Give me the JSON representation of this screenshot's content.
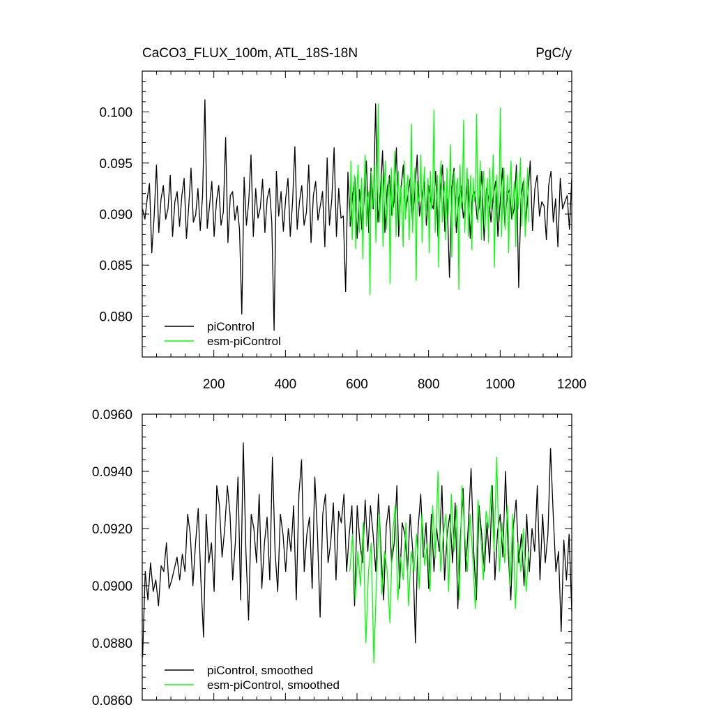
{
  "chart_data": [
    {
      "type": "line",
      "title": "CaCO3_FLUX_100m, ATL_18S-18N",
      "units": "PgC/y",
      "xlim": [
        0,
        1200
      ],
      "ylim": [
        0.076,
        0.104
      ],
      "x_ticks": [
        200,
        400,
        600,
        800,
        1000,
        1200
      ],
      "x_tick_labels": [
        "200",
        "400",
        "600",
        "800",
        "1000",
        "1200"
      ],
      "y_ticks": [
        0.08,
        0.085,
        0.09,
        0.095,
        0.1
      ],
      "y_tick_labels": [
        "0.080",
        "0.085",
        "0.090",
        "0.095",
        "0.100"
      ],
      "legend_position": "bottom-left",
      "series": [
        {
          "name": "piControl",
          "color": "#000000",
          "x_start": 1,
          "x_end": 1200,
          "values": [
            0.0905,
            0.0895,
            0.0915,
            0.093,
            0.0862,
            0.0898,
            0.0948,
            0.0882,
            0.0915,
            0.0928,
            0.0895,
            0.0905,
            0.0938,
            0.0878,
            0.0912,
            0.0922,
            0.0888,
            0.0918,
            0.0935,
            0.0876,
            0.0908,
            0.0945,
            0.0892,
            0.0899,
            0.0925,
            0.0884,
            0.0918,
            0.1012,
            0.0886,
            0.0908,
            0.0932,
            0.0878,
            0.0912,
            0.0928,
            0.0889,
            0.0902,
            0.0975,
            0.0872,
            0.0918,
            0.0922,
            0.0894,
            0.0908,
            0.0885,
            0.0802,
            0.0936,
            0.0889,
            0.0912,
            0.0958,
            0.0878,
            0.0925,
            0.0896,
            0.0906,
            0.0934,
            0.0882,
            0.0915,
            0.0925,
            0.0892,
            0.0786,
            0.0942,
            0.0898,
            0.0922,
            0.0883,
            0.0915,
            0.0935,
            0.0878,
            0.0912,
            0.0966,
            0.0885,
            0.0912,
            0.0928,
            0.0889,
            0.0902,
            0.0948,
            0.0872,
            0.0918,
            0.0932,
            0.0894,
            0.0908,
            0.0922,
            0.0868,
            0.0955,
            0.0889,
            0.0915,
            0.0965,
            0.0878,
            0.0925,
            0.0896,
            0.0898,
            0.0824,
            0.0941,
            0.0888,
            0.0918,
            0.0936,
            0.0876,
            0.0924,
            0.0885,
            0.0912,
            0.0952,
            0.0882,
            0.0945,
            0.0905,
            0.1008,
            0.0892,
            0.0918,
            0.0962,
            0.0882,
            0.0925,
            0.0938,
            0.0899,
            0.0912,
            0.0965,
            0.0878,
            0.0925,
            0.0948,
            0.0902,
            0.0918,
            0.0935,
            0.0892,
            0.0922,
            0.0958,
            0.0898,
            0.0915,
            0.0932,
            0.0889,
            0.0928,
            0.0912,
            0.0905,
            0.0942,
            0.0878,
            0.0922,
            0.0948,
            0.0883,
            0.0915,
            0.0838,
            0.0925,
            0.0945,
            0.0882,
            0.0915,
            0.0928,
            0.0896,
            0.0912,
            0.0934,
            0.0876,
            0.0918,
            0.0922,
            0.0895,
            0.0908,
            0.0942,
            0.0874,
            0.0925,
            0.0915,
            0.0892,
            0.0918,
            0.0932,
            0.0878,
            0.0912,
            0.0945,
            0.0889,
            0.0918,
            0.0924,
            0.0895,
            0.0905,
            0.0948,
            0.0828,
            0.0915,
            0.0932,
            0.0889,
            0.0918,
            0.0952,
            0.0884,
            0.0925,
            0.0938,
            0.0898,
            0.0912,
            0.0908,
            0.0875,
            0.0928,
            0.0942,
            0.0892,
            0.0915,
            0.0868,
            0.0935,
            0.0905,
            0.0912,
            0.0918,
            0.0885,
            0.0935
          ]
        },
        {
          "name": "esm-piControl",
          "color": "#00ff00",
          "x_start": 580,
          "x_end": 1080,
          "values": [
            0.0892,
            0.0952,
            0.0875,
            0.0915,
            0.0938,
            0.0866,
            0.0924,
            0.0948,
            0.0882,
            0.0912,
            0.0935,
            0.0856,
            0.0928,
            0.0958,
            0.0888,
            0.0915,
            0.0922,
            0.0821,
            0.0942,
            0.0905,
            0.0918,
            0.0948,
            0.0872,
            0.0925,
            0.1008,
            0.0892,
            0.0915,
            0.0938,
            0.0868,
            0.0928,
            0.0952,
            0.0885,
            0.0918,
            0.0935,
            0.0832,
            0.0945,
            0.0898,
            0.0925,
            0.0962,
            0.0878,
            0.0918,
            0.0942,
            0.0889,
            0.0928,
            0.0905,
            0.0868,
            0.0952,
            0.0895,
            0.0925,
            0.0938,
            0.0875,
            0.0915,
            0.0988,
            0.0882,
            0.0925,
            0.0945,
            0.0835,
            0.0932,
            0.0912,
            0.0918,
            0.0958,
            0.0872,
            0.0925,
            0.0946,
            0.0895,
            0.0918,
            0.0935,
            0.0862,
            0.0942,
            0.0905,
            0.0925,
            0.1002,
            0.0882,
            0.0912,
            0.0938,
            0.0848,
            0.0935,
            0.0952,
            0.0892,
            0.0918,
            0.0932,
            0.0875,
            0.0945,
            0.0898,
            0.0925,
            0.0968,
            0.0858,
            0.0918,
            0.0942,
            0.0888,
            0.0928,
            0.0935,
            0.0826,
            0.0948,
            0.0905,
            0.0918,
            0.0992,
            0.0882,
            0.0925,
            0.0945,
            0.0878,
            0.0915,
            0.0938,
            0.0865,
            0.0935,
            0.0912,
            0.0922,
            0.0998,
            0.0892,
            0.0918,
            0.0952,
            0.0875,
            0.0928,
            0.0942,
            0.0885,
            0.0912,
            0.0935,
            0.0872,
            0.0945,
            0.0905,
            0.0922,
            0.0958,
            0.0848,
            0.0918,
            0.0938,
            0.0892,
            0.0925,
            0.1004,
            0.0878,
            0.0918,
            0.0945,
            0.0885,
            0.0912,
            0.0938,
            0.0862,
            0.0928,
            0.0952,
            0.0895,
            0.0918,
            0.0932,
            0.0868,
            0.0942,
            0.0905,
            0.0925,
            0.0955,
            0.0888,
            0.0918,
            0.0935,
            0.0878,
            0.0912,
            0.0945,
            0.0892
          ]
        }
      ],
      "legend": [
        "piControl",
        "esm-piControl"
      ]
    },
    {
      "type": "line",
      "xlim": [
        0,
        1200
      ],
      "ylim": [
        0.086,
        0.096
      ],
      "y_ticks": [
        0.086,
        0.088,
        0.09,
        0.092,
        0.094,
        0.096
      ],
      "y_tick_labels": [
        "0.0860",
        "0.0880",
        "0.0900",
        "0.0920",
        "0.0940",
        "0.0960"
      ],
      "legend_position": "bottom-left",
      "series": [
        {
          "name": "piControl, smoothed",
          "color": "#000000",
          "x_start": 1,
          "x_end": 1200,
          "values": [
            0.0875,
            0.0905,
            0.0895,
            0.0908,
            0.0898,
            0.0902,
            0.0893,
            0.0907,
            0.0905,
            0.0915,
            0.0899,
            0.0902,
            0.0906,
            0.091,
            0.0902,
            0.0911,
            0.0905,
            0.0925,
            0.0918,
            0.09,
            0.0915,
            0.0927,
            0.0902,
            0.0882,
            0.0925,
            0.0908,
            0.0915,
            0.0898,
            0.0935,
            0.0928,
            0.091,
            0.092,
            0.0935,
            0.0925,
            0.0902,
            0.0915,
            0.0938,
            0.0895,
            0.095,
            0.0912,
            0.0888,
            0.0925,
            0.092,
            0.0908,
            0.0932,
            0.0899,
            0.0915,
            0.0924,
            0.0902,
            0.0945,
            0.0912,
            0.0898,
            0.0925,
            0.0918,
            0.0905,
            0.092,
            0.0912,
            0.0928,
            0.0895,
            0.0932,
            0.0944,
            0.0905,
            0.0918,
            0.0924,
            0.0899,
            0.0938,
            0.0918,
            0.0889,
            0.0925,
            0.0932,
            0.0908,
            0.0915,
            0.0929,
            0.0902,
            0.0926,
            0.0922,
            0.0932,
            0.0905,
            0.0918,
            0.0928,
            0.0893,
            0.0928,
            0.0915,
            0.0908,
            0.093,
            0.0912,
            0.0928,
            0.0918,
            0.0905,
            0.0932,
            0.0912,
            0.0895,
            0.0921,
            0.0928,
            0.0908,
            0.0915,
            0.0935,
            0.0899,
            0.0922,
            0.0918,
            0.0905,
            0.0925,
            0.0912,
            0.088,
            0.092,
            0.0932,
            0.091,
            0.0922,
            0.0899,
            0.0925,
            0.0905,
            0.092,
            0.0912,
            0.0935,
            0.0902,
            0.0918,
            0.0925,
            0.0908,
            0.0929,
            0.0892,
            0.0918,
            0.0934,
            0.0905,
            0.0922,
            0.0941,
            0.0912,
            0.0895,
            0.0928,
            0.0918,
            0.0905,
            0.0922,
            0.0908,
            0.0935,
            0.0902,
            0.0919,
            0.0925,
            0.091,
            0.094,
            0.0912,
            0.0895,
            0.0921,
            0.093,
            0.0908,
            0.0918,
            0.09,
            0.0925,
            0.0905,
            0.092,
            0.0912,
            0.0935,
            0.0902,
            0.0925,
            0.0908,
            0.0918,
            0.0948,
            0.0925,
            0.0905,
            0.0912,
            0.0884,
            0.0916,
            0.0902,
            0.0918,
            0.0891
          ]
        },
        {
          "name": "esm-piControl, smoothed",
          "color": "#00ff00",
          "x_start": 580,
          "x_end": 1080,
          "values": [
            0.0905,
            0.0918,
            0.0895,
            0.0912,
            0.09,
            0.0922,
            0.088,
            0.0905,
            0.0915,
            0.0873,
            0.0902,
            0.0925,
            0.0897,
            0.0912,
            0.0905,
            0.0887,
            0.0918,
            0.0928,
            0.0895,
            0.091,
            0.0902,
            0.0922,
            0.0893,
            0.0912,
            0.0905,
            0.0918,
            0.0899,
            0.0925,
            0.0907,
            0.0915,
            0.0898,
            0.0928,
            0.091,
            0.094,
            0.0905,
            0.0918,
            0.0925,
            0.0898,
            0.0932,
            0.0912,
            0.0928,
            0.0895,
            0.0935,
            0.0918,
            0.0905,
            0.0925,
            0.091,
            0.0892,
            0.093,
            0.0918,
            0.0902,
            0.0926,
            0.092,
            0.0935,
            0.0912,
            0.0945,
            0.0905,
            0.0922,
            0.0908,
            0.0928,
            0.09,
            0.0925,
            0.0892,
            0.0915,
            0.0905,
            0.092,
            0.0898,
            0.0912
          ]
        }
      ],
      "legend": [
        "piControl, smoothed",
        "esm-piControl, smoothed"
      ]
    }
  ]
}
